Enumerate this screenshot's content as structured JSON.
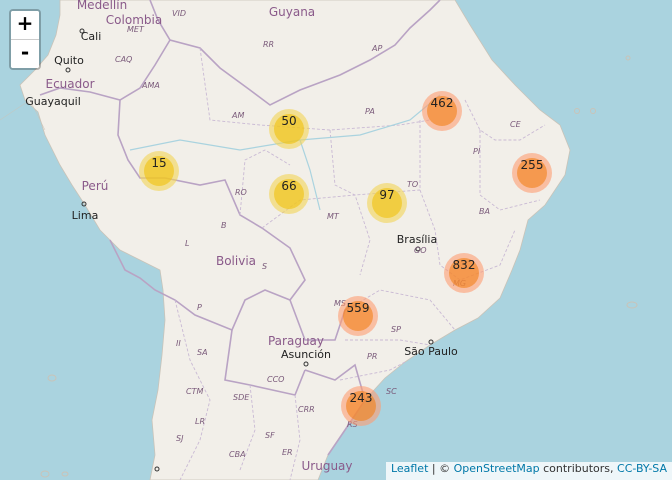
{
  "map": {
    "countries": [
      {
        "id": "medellin-city",
        "label": "Medellín"
      },
      {
        "id": "colombia",
        "label": "Colombia"
      },
      {
        "id": "guyana",
        "label": "Guyana"
      },
      {
        "id": "ecuador",
        "label": "Ecuador"
      },
      {
        "id": "peru",
        "label": "Perú"
      },
      {
        "id": "bolivia",
        "label": "Bolivia"
      },
      {
        "id": "paraguay",
        "label": "Paraguay"
      },
      {
        "id": "uruguay",
        "label": "Uruguay"
      }
    ],
    "cities": [
      {
        "id": "cali",
        "label": "Cali"
      },
      {
        "id": "quito",
        "label": "Quito"
      },
      {
        "id": "guayaquil",
        "label": "Guayaquil"
      },
      {
        "id": "lima",
        "label": "Lima"
      },
      {
        "id": "brasilia",
        "label": "Brasília"
      },
      {
        "id": "sao-paulo",
        "label": "São Paulo"
      },
      {
        "id": "asuncion",
        "label": "Asunción"
      }
    ],
    "regions": [
      "VID",
      "RR",
      "AP",
      "MET",
      "CAQ",
      "AMA",
      "AM",
      "PA",
      "CE",
      "PI",
      "RO",
      "TO",
      "MT",
      "BA",
      "L",
      "B",
      "S",
      "GO",
      "MS",
      "MG",
      "P",
      "II",
      "SA",
      "SP",
      "PR",
      "CTM",
      "SDE",
      "CCO",
      "SC",
      "CRR",
      "LR",
      "SF",
      "SJ",
      "CBA",
      "ER",
      "RS"
    ]
  },
  "clusters": [
    {
      "count": "15",
      "size": "medium"
    },
    {
      "count": "50",
      "size": "medium"
    },
    {
      "count": "66",
      "size": "medium"
    },
    {
      "count": "97",
      "size": "medium"
    },
    {
      "count": "462",
      "size": "large"
    },
    {
      "count": "255",
      "size": "large"
    },
    {
      "count": "832",
      "size": "large"
    },
    {
      "count": "559",
      "size": "large"
    },
    {
      "count": "243",
      "size": "large"
    }
  ],
  "controls": {
    "zoom_in": "+",
    "zoom_out": "-"
  },
  "attribution": {
    "leaflet": "Leaflet",
    "separator": " | © ",
    "osm": "OpenStreetMap",
    "middle": " contributors, ",
    "license": "CC-BY-SA"
  },
  "colors": {
    "water": "#aad3df",
    "land": "#f2efe9",
    "border": "#b9a3c4"
  }
}
